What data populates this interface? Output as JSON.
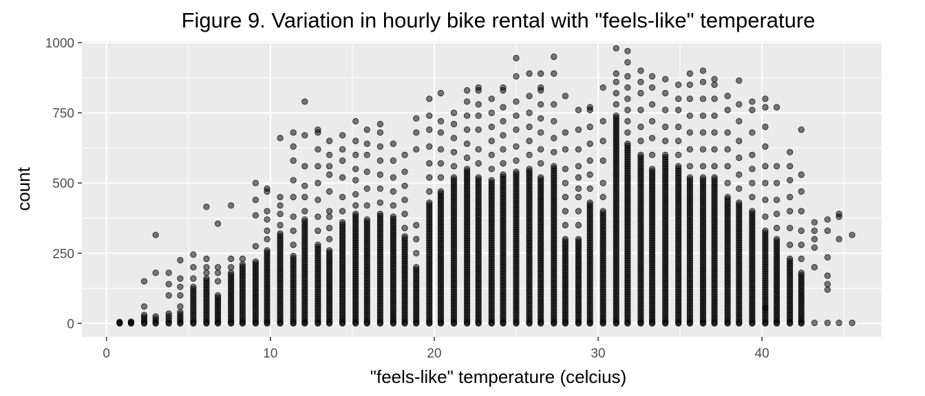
{
  "chart_data": {
    "type": "scatter",
    "title": "Figure 9. Variation in hourly bike rental with \"feels-like\" temperature",
    "xlabel": "\"feels-like\" temperature (celcius)",
    "ylabel": "count",
    "xlim": [
      -1.5,
      47.3
    ],
    "ylim": [
      -48,
      1005
    ],
    "xticks": [
      0,
      10,
      20,
      30,
      40
    ],
    "yticks": [
      0,
      250,
      500,
      750,
      1000
    ],
    "grid": true,
    "point_color": "#000000",
    "point_opacity": 0.5,
    "panel_color": "#ebebeb",
    "columns": [
      {
        "x": 0.8,
        "dense_max": 5,
        "outliers": []
      },
      {
        "x": 1.5,
        "dense_max": 6,
        "outliers": []
      },
      {
        "x": 2.3,
        "dense_max": 30,
        "outliers": [
          60,
          150
        ]
      },
      {
        "x": 3.0,
        "dense_max": 25,
        "outliers": [
          180,
          315
        ]
      },
      {
        "x": 3.8,
        "dense_max": 35,
        "outliers": [
          100,
          140,
          180
        ]
      },
      {
        "x": 4.5,
        "dense_max": 40,
        "outliers": [
          60,
          100,
          130,
          160,
          225
        ]
      },
      {
        "x": 5.3,
        "dense_max": 130,
        "outliers": [
          160,
          200,
          245
        ]
      },
      {
        "x": 6.1,
        "dense_max": 160,
        "outliers": [
          180,
          200,
          230,
          415
        ]
      },
      {
        "x": 6.8,
        "dense_max": 100,
        "outliers": [
          150,
          180,
          200,
          355
        ]
      },
      {
        "x": 7.6,
        "dense_max": 180,
        "outliers": [
          200,
          230,
          420
        ]
      },
      {
        "x": 8.3,
        "dense_max": 210,
        "outliers": [
          230
        ]
      },
      {
        "x": 9.1,
        "dense_max": 220,
        "outliers": [
          275,
          385,
          440,
          500
        ]
      },
      {
        "x": 9.8,
        "dense_max": 260,
        "outliers": [
          300,
          330,
          370,
          400,
          470,
          480
        ]
      },
      {
        "x": 10.6,
        "dense_max": 320,
        "outliers": [
          350,
          390,
          420,
          450,
          660
        ]
      },
      {
        "x": 11.4,
        "dense_max": 240,
        "outliers": [
          280,
          330,
          380,
          450,
          510,
          580,
          630,
          680
        ]
      },
      {
        "x": 12.1,
        "dense_max": 370,
        "outliers": [
          400,
          450,
          490,
          560,
          670,
          790
        ]
      },
      {
        "x": 12.9,
        "dense_max": 280,
        "outliers": [
          330,
          380,
          440,
          500,
          560,
          620,
          680,
          690
        ]
      },
      {
        "x": 13.6,
        "dense_max": 260,
        "outliers": [
          300,
          340,
          380,
          400,
          470,
          530,
          560,
          600,
          650
        ]
      },
      {
        "x": 14.4,
        "dense_max": 360,
        "outliers": [
          400,
          450,
          520,
          580,
          620,
          670
        ]
      },
      {
        "x": 15.2,
        "dense_max": 390,
        "outliers": [
          420,
          460,
          510,
          550,
          600,
          650,
          720
        ]
      },
      {
        "x": 15.9,
        "dense_max": 370,
        "outliers": [
          420,
          480,
          540,
          600,
          640,
          690
        ]
      },
      {
        "x": 16.7,
        "dense_max": 390,
        "outliers": [
          430,
          480,
          530,
          580,
          630,
          680,
          710
        ]
      },
      {
        "x": 17.5,
        "dense_max": 380,
        "outliers": [
          420,
          470,
          520,
          580,
          640
        ]
      },
      {
        "x": 18.2,
        "dense_max": 310,
        "outliers": [
          340,
          390,
          440,
          490,
          540,
          600
        ]
      },
      {
        "x": 18.9,
        "dense_max": 200,
        "outliers": [
          250,
          300,
          350,
          620,
          680,
          730
        ]
      },
      {
        "x": 19.7,
        "dense_max": 430,
        "outliers": [
          470,
          520,
          570,
          630,
          690,
          740,
          800
        ]
      },
      {
        "x": 20.4,
        "dense_max": 470,
        "outliers": [
          520,
          570,
          620,
          680,
          720,
          820
        ]
      },
      {
        "x": 21.2,
        "dense_max": 520,
        "outliers": [
          560,
          610,
          660,
          710,
          750
        ]
      },
      {
        "x": 22.0,
        "dense_max": 550,
        "outliers": [
          590,
          640,
          690,
          740,
          790,
          830
        ]
      },
      {
        "x": 22.7,
        "dense_max": 520,
        "outliers": [
          570,
          620,
          690,
          740,
          780,
          830,
          840
        ]
      },
      {
        "x": 23.5,
        "dense_max": 510,
        "outliers": [
          550,
          600,
          650,
          700,
          750,
          800
        ]
      },
      {
        "x": 24.2,
        "dense_max": 530,
        "outliers": [
          570,
          620,
          670,
          720,
          770,
          830,
          840
        ]
      },
      {
        "x": 25.0,
        "dense_max": 540,
        "outliers": [
          580,
          630,
          690,
          740,
          790,
          880,
          945
        ]
      },
      {
        "x": 25.8,
        "dense_max": 550,
        "outliers": [
          600,
          650,
          700,
          750,
          810,
          890
        ]
      },
      {
        "x": 26.5,
        "dense_max": 520,
        "outliers": [
          570,
          620,
          680,
          730,
          780,
          830,
          840,
          890
        ]
      },
      {
        "x": 27.3,
        "dense_max": 560,
        "outliers": [
          610,
          660,
          720,
          780,
          890,
          950
        ]
      },
      {
        "x": 28.0,
        "dense_max": 300,
        "outliers": [
          350,
          400,
          450,
          500,
          550,
          620,
          680,
          810
        ]
      },
      {
        "x": 28.8,
        "dense_max": 300,
        "outliers": [
          350,
          400,
          450,
          480,
          520,
          560,
          620,
          690,
          760
        ]
      },
      {
        "x": 29.5,
        "dense_max": 430,
        "outliers": [
          480,
          530,
          580,
          640,
          700,
          760,
          770
        ]
      },
      {
        "x": 30.3,
        "dense_max": 400,
        "outliers": [
          450,
          500,
          580,
          650,
          720,
          840
        ]
      },
      {
        "x": 31.1,
        "dense_max": 740,
        "outliers": [
          780,
          820,
          860,
          890,
          980
        ]
      },
      {
        "x": 31.8,
        "dense_max": 640,
        "outliers": [
          680,
          720,
          760,
          800,
          840,
          880,
          930,
          970
        ]
      },
      {
        "x": 32.6,
        "dense_max": 600,
        "outliers": [
          650,
          700,
          760,
          820,
          860,
          900
        ]
      },
      {
        "x": 33.3,
        "dense_max": 550,
        "outliers": [
          600,
          660,
          720,
          780,
          840,
          880
        ]
      },
      {
        "x": 34.1,
        "dense_max": 600,
        "outliers": [
          650,
          700,
          760,
          820,
          870
        ]
      },
      {
        "x": 34.9,
        "dense_max": 560,
        "outliers": [
          600,
          650,
          700,
          760,
          800,
          850
        ]
      },
      {
        "x": 35.6,
        "dense_max": 520,
        "outliers": [
          560,
          620,
          680,
          740,
          800,
          850,
          890
        ]
      },
      {
        "x": 36.4,
        "dense_max": 520,
        "outliers": [
          560,
          620,
          680,
          740,
          800,
          860,
          900
        ]
      },
      {
        "x": 37.1,
        "dense_max": 520,
        "outliers": [
          560,
          620,
          680,
          740,
          800,
          850,
          870
        ]
      },
      {
        "x": 37.9,
        "dense_max": 450,
        "outliers": [
          500,
          560,
          620,
          680,
          760,
          810
        ]
      },
      {
        "x": 38.6,
        "dense_max": 430,
        "outliers": [
          480,
          530,
          590,
          650,
          720,
          780,
          865
        ]
      },
      {
        "x": 39.4,
        "dense_max": 400,
        "outliers": [
          450,
          500,
          550,
          600,
          680,
          760,
          790
        ]
      },
      {
        "x": 40.2,
        "dense_max": 330,
        "outliers": [
          380,
          440,
          500,
          560,
          630,
          700,
          770,
          800,
          55
        ]
      },
      {
        "x": 40.9,
        "dense_max": 300,
        "outliers": [
          340,
          390,
          440,
          500,
          560,
          770
        ]
      },
      {
        "x": 41.7,
        "dense_max": 230,
        "outliers": [
          280,
          340,
          400,
          450,
          510,
          560,
          610
        ]
      },
      {
        "x": 42.4,
        "dense_max": 180,
        "outliers": [
          230,
          280,
          330,
          400,
          470,
          530,
          690
        ]
      },
      {
        "x": 43.2,
        "dense_max": 0,
        "outliers": [
          200,
          270,
          300,
          330,
          360
        ]
      },
      {
        "x": 44.0,
        "dense_max": 0,
        "outliers": [
          120,
          140,
          170,
          235,
          330,
          370
        ]
      },
      {
        "x": 44.7,
        "dense_max": 0,
        "outliers": [
          300,
          380,
          390
        ]
      },
      {
        "x": 45.5,
        "dense_max": 0,
        "outliers": [
          315
        ]
      }
    ]
  }
}
